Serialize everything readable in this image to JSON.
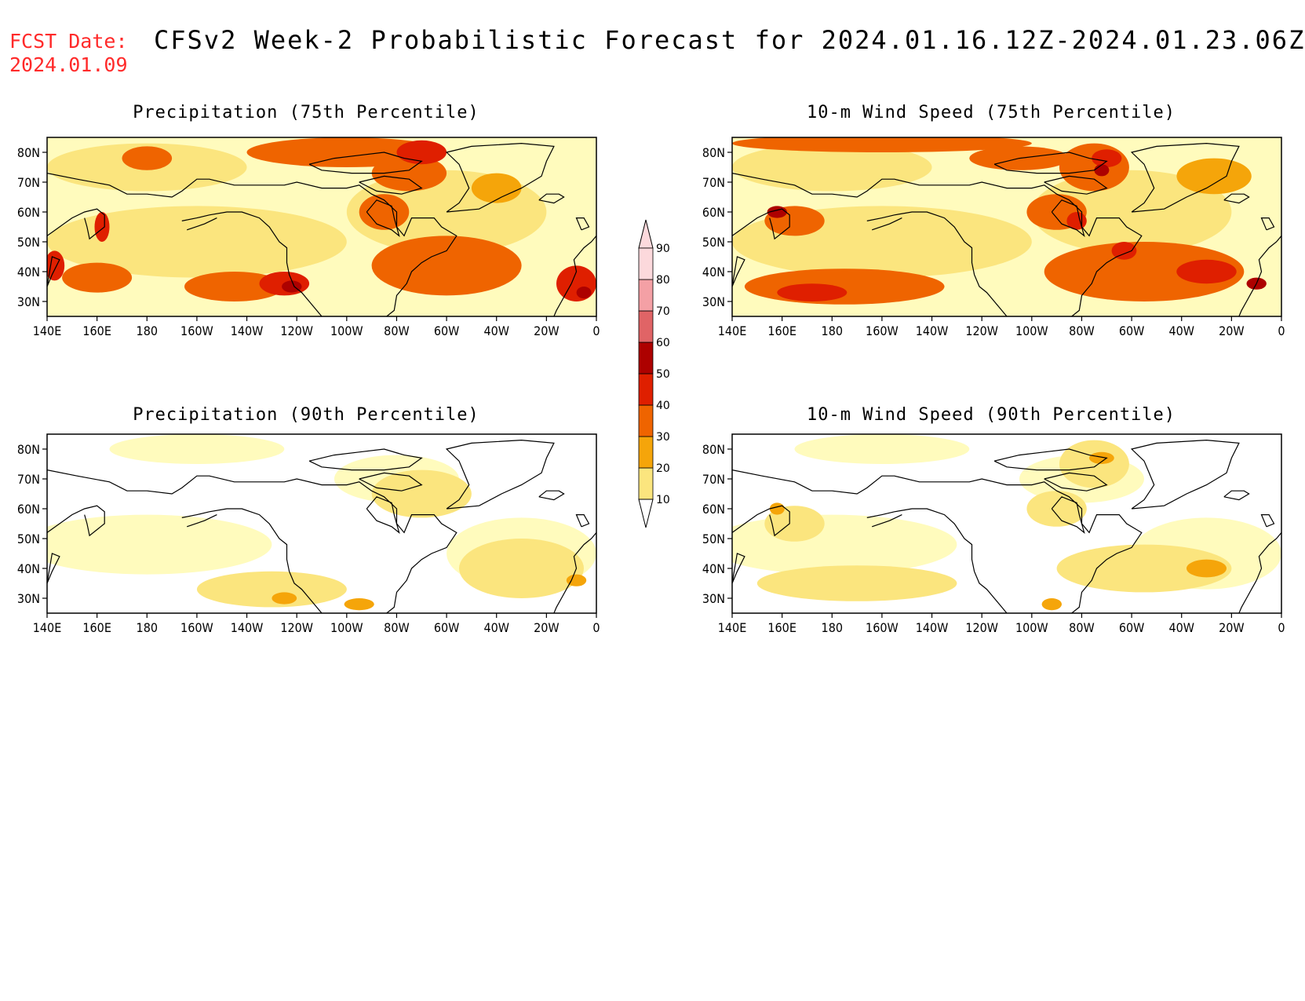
{
  "header": {
    "fcst_label": "FCST Date:",
    "fcst_date": "2024.01.09",
    "title": "CFSv2 Week-2 Probabilistic Forecast for 2024.01.16.12Z-2024.01.23.06Z"
  },
  "colors": {
    "fcst_text": "#ff2a2a",
    "coastline": "#000000",
    "scale": [
      "#fffbbd",
      "#fbe57e",
      "#f5a50a",
      "#ef6400",
      "#df1f00",
      "#ad0100",
      "#e06466",
      "#f4a0a5",
      "#fcd9dc"
    ]
  },
  "colorbar": {
    "levels": [
      "10",
      "20",
      "30",
      "40",
      "50",
      "60",
      "70",
      "80",
      "90"
    ]
  },
  "axes": {
    "lat_labels": [
      "80N",
      "70N",
      "60N",
      "50N",
      "40N",
      "30N"
    ],
    "lon_labels": [
      "140E",
      "160E",
      "180",
      "160W",
      "140W",
      "120W",
      "100W",
      "80W",
      "60W",
      "40W",
      "20W",
      "0"
    ]
  },
  "panels": [
    {
      "id": "precip75",
      "title": "Precipitation (75th Percentile)",
      "intensity": "high",
      "base_level": 20
    },
    {
      "id": "wind75",
      "title": "10-m Wind Speed (75th Percentile)",
      "intensity": "high",
      "base_level": 20
    },
    {
      "id": "precip90",
      "title": "Precipitation (90th Percentile)",
      "intensity": "low",
      "base_level": 10
    },
    {
      "id": "wind90",
      "title": "10-m Wind Speed (90th Percentile)",
      "intensity": "low",
      "base_level": 10
    }
  ]
}
